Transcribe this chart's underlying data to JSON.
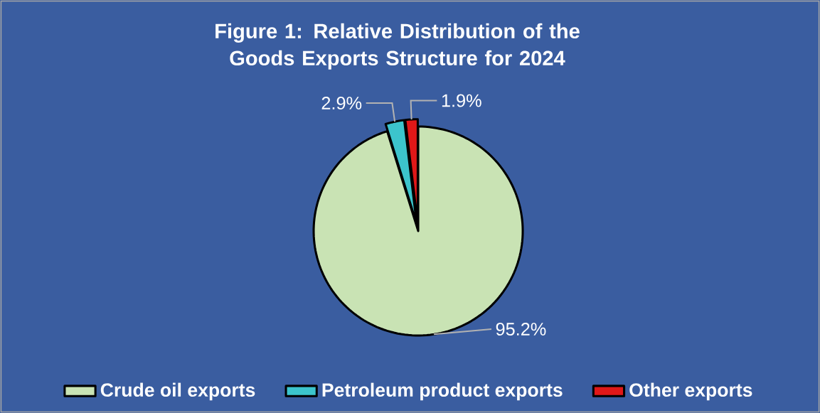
{
  "chart_data": {
    "type": "pie",
    "title": "Figure 1: Relative Distribution of the Goods Exports Structure  for 2024",
    "categories": [
      "Crude oil exports",
      "Petroleum product exports",
      "Other exports"
    ],
    "values": [
      95.2,
      2.9,
      1.9
    ],
    "colors": [
      "#c9e3b4",
      "#3cc4cc",
      "#e01818"
    ],
    "value_labels": [
      "95.2%",
      "2.9%",
      "1.9%"
    ],
    "legend": "bottom"
  }
}
